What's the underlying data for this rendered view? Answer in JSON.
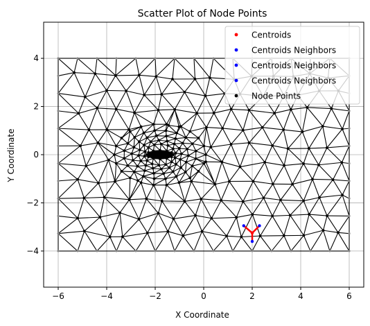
{
  "chart_data": {
    "type": "scatter",
    "title": "Scatter Plot of Node Points",
    "xlabel": "X Coordinate",
    "ylabel": "Y Coordinate",
    "xlim": [
      -6.6,
      6.6
    ],
    "ylim": [
      -5.5,
      5.5
    ],
    "xticks": [
      -6,
      -4,
      -2,
      0,
      2,
      4,
      6
    ],
    "xtick_labels": [
      "−6",
      "−4",
      "−2",
      "0",
      "2",
      "4",
      "6"
    ],
    "yticks": [
      -4,
      -2,
      0,
      2,
      4
    ],
    "ytick_labels": [
      "−4",
      "−2",
      "0",
      "2",
      "4"
    ],
    "grid": true,
    "legend_position": "top-right",
    "legend": [
      {
        "label": "Centroids",
        "color": "#ff0000"
      },
      {
        "label": "Centroids Neighbors",
        "color": "#0000ff"
      },
      {
        "label": "Centroids Neighbors",
        "color": "#0000ff"
      },
      {
        "label": "Centroids Neighbors",
        "color": "#0000ff"
      },
      {
        "label": "Node Points",
        "color": "#000000"
      }
    ],
    "domain": {
      "xmin": -6,
      "xmax": 6,
      "ymin": -4,
      "ymax": 4
    },
    "dense_region": {
      "cx": -1.8,
      "cy": 0,
      "rx": 1.3,
      "ry": 0.55,
      "core_rx": 0.55,
      "core_ry": 0.18
    },
    "centroid": {
      "x": 2.0,
      "y": -3.25
    },
    "centroid_neighbors": [
      {
        "x": 1.65,
        "y": -2.95
      },
      {
        "x": 2.3,
        "y": -2.95
      },
      {
        "x": 2.0,
        "y": -3.6
      }
    ],
    "colors": {
      "mesh": "#000000",
      "centroid": "#ff0000",
      "neighbor": "#0000ff",
      "grid": "#b0b0b0"
    }
  }
}
